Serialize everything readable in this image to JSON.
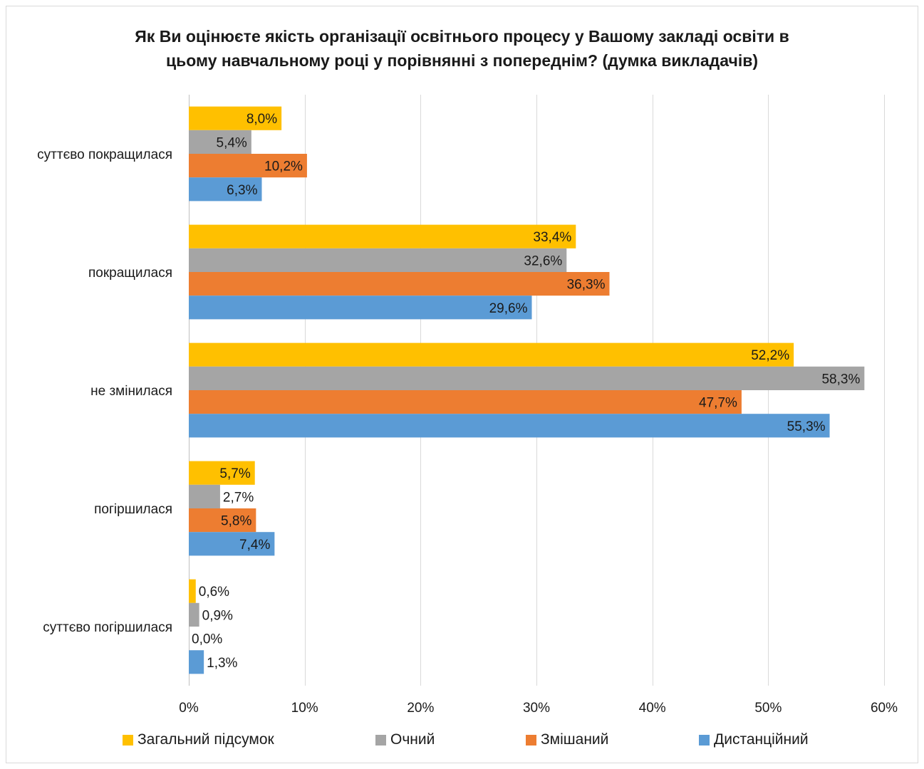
{
  "title_lines": [
    "Як Ви оцінюєте якість організації освітнього процесу у Вашому закладі освіти в",
    "цьому навчальному році у порівнянні з попереднім? (думка викладачів)"
  ],
  "chart_data": {
    "type": "bar",
    "orientation": "horizontal",
    "title": "Як Ви оцінюєте якість організації освітнього процесу у Вашому закладі освіти в цьому навчальному році у порівнянні з попереднім? (думка викладачів)",
    "categories": [
      "суттєво покращилася",
      "покращилася",
      "не змінилася",
      "погіршилася",
      "суттєво погіршилася"
    ],
    "series": [
      {
        "name": "Загальний підсумок",
        "color": "#FFC000",
        "values": [
          8.0,
          33.4,
          52.2,
          5.7,
          0.6
        ],
        "labels": [
          "8,0%",
          "33,4%",
          "52,2%",
          "5,7%",
          "0,6%"
        ]
      },
      {
        "name": "Очний",
        "color": "#A5A5A5",
        "values": [
          5.4,
          32.6,
          58.3,
          2.7,
          0.9
        ],
        "labels": [
          "5,4%",
          "32,6%",
          "58,3%",
          "2,7%",
          "0,9%"
        ]
      },
      {
        "name": "Змішаний",
        "color": "#ED7D31",
        "values": [
          10.2,
          36.3,
          47.7,
          5.8,
          0.0
        ],
        "labels": [
          "10,2%",
          "36,3%",
          "47,7%",
          "5,8%",
          "0,0%"
        ]
      },
      {
        "name": "Дистанційний",
        "color": "#5B9BD5",
        "values": [
          6.3,
          29.6,
          55.3,
          7.4,
          1.3
        ],
        "labels": [
          "6,3%",
          "29,6%",
          "55,3%",
          "7,4%",
          "1,3%"
        ]
      }
    ],
    "xlim": [
      0,
      60
    ],
    "xticks": [
      0,
      10,
      20,
      30,
      40,
      50,
      60
    ],
    "xtick_labels": [
      "0%",
      "10%",
      "20%",
      "30%",
      "40%",
      "50%",
      "60%"
    ],
    "grid": true,
    "legend_position": "bottom"
  }
}
